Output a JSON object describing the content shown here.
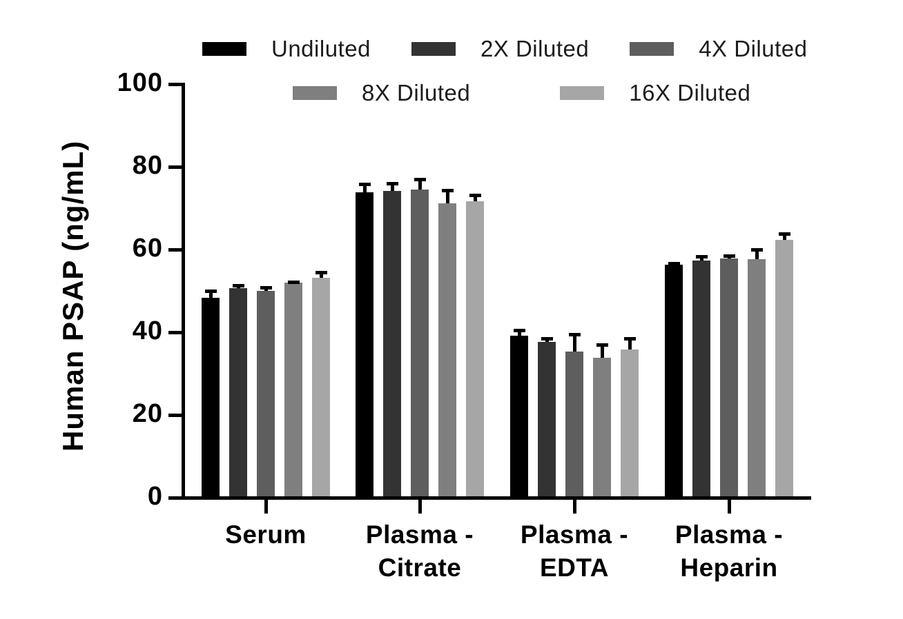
{
  "chart_data": {
    "type": "bar",
    "title": "",
    "xlabel": "",
    "ylabel": "Human PSAP (ng/mL)",
    "ylim": [
      0,
      100
    ],
    "yticks": [
      0,
      20,
      40,
      60,
      80,
      100
    ],
    "grid": "off",
    "legend_position": "top",
    "axis_color": "#000000",
    "error_bar_color": "#000000",
    "background_color": "#ffffff",
    "categories": [
      "Serum",
      "Plasma - Citrate",
      "Plasma - EDTA",
      "Plasma - Heparin"
    ],
    "category_label_lines": [
      [
        "Serum"
      ],
      [
        "Plasma -",
        "Citrate"
      ],
      [
        "Plasma -",
        "EDTA"
      ],
      [
        "Plasma -",
        "Heparin"
      ]
    ],
    "series": [
      {
        "name": "Undiluted",
        "color": "#000000",
        "values": [
          48.4,
          73.9,
          39.2,
          56.3
        ],
        "errors": [
          2.0,
          2.2,
          1.7,
          0.7
        ]
      },
      {
        "name": "2X Diluted",
        "color": "#333333",
        "values": [
          50.7,
          74.1,
          37.6,
          57.3
        ],
        "errors": [
          0.9,
          2.3,
          1.3,
          1.3
        ]
      },
      {
        "name": "4X Diluted",
        "color": "#5e5e5e",
        "values": [
          50.0,
          74.5,
          35.3,
          57.8
        ],
        "errors": [
          1.2,
          2.9,
          4.5,
          1.0
        ]
      },
      {
        "name": "8X Diluted",
        "color": "#7f7f7f",
        "values": [
          52.0,
          71.1,
          33.8,
          57.7
        ],
        "errors": [
          0.5,
          3.5,
          3.5,
          2.7
        ]
      },
      {
        "name": "16X Diluted",
        "color": "#a6a6a6",
        "values": [
          53.2,
          71.7,
          35.9,
          62.3
        ],
        "errors": [
          1.6,
          1.8,
          3.0,
          1.8
        ]
      }
    ],
    "legend_rows": [
      [
        "Undiluted",
        "2X Diluted",
        "4X Diluted"
      ],
      [
        "8X Diluted",
        "16X Diluted"
      ]
    ]
  }
}
